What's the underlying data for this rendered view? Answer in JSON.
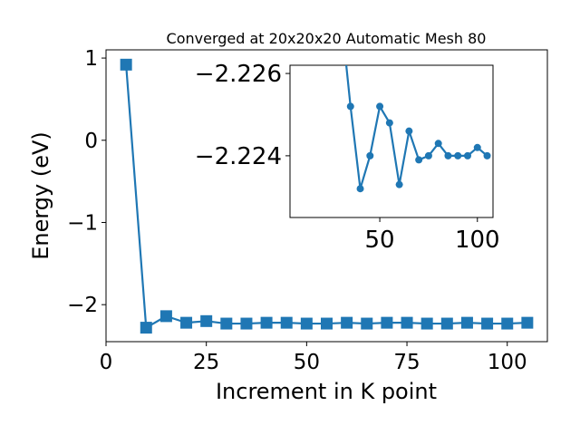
{
  "chart_data": [
    {
      "type": "line",
      "title": "Converged at 20x20x20 Automatic Mesh 80",
      "xlabel": "Increment in K point",
      "ylabel": "Energy (eV)",
      "xlim": [
        0,
        110
      ],
      "ylim": [
        -2.45,
        1.1
      ],
      "xticks": [
        0,
        25,
        50,
        75,
        100
      ],
      "yticks": [
        1,
        0,
        -1,
        -2
      ],
      "xtick_labels": [
        "0",
        "25",
        "50",
        "75",
        "100"
      ],
      "ytick_labels": [
        "1",
        "0",
        "−1",
        "−2"
      ],
      "marker": "square",
      "color": "#1f77b4",
      "series": [
        {
          "x": [
            5,
            10,
            15,
            20,
            25,
            30,
            35,
            40,
            45,
            50,
            55,
            60,
            65,
            70,
            75,
            80,
            85,
            90,
            95,
            100,
            105
          ],
          "y": [
            0.92,
            -2.28,
            -2.14,
            -2.22,
            -2.2,
            -2.23,
            -2.23,
            -2.22,
            -2.22,
            -2.23,
            -2.23,
            -2.22,
            -2.23,
            -2.22,
            -2.22,
            -2.23,
            -2.23,
            -2.22,
            -2.23,
            -2.23,
            -2.22
          ]
        }
      ]
    },
    {
      "type": "line",
      "title": "",
      "xlabel": "",
      "ylabel": "",
      "xlim": [
        4,
        108
      ],
      "ylim": [
        -2.2225,
        -2.2262
      ],
      "xticks": [
        50,
        100
      ],
      "yticks": [
        -2.226,
        -2.224
      ],
      "xtick_labels": [
        "50",
        "100"
      ],
      "ytick_labels": [
        "−2.226",
        "−2.224"
      ],
      "marker": "circle",
      "color": "#1f77b4",
      "series": [
        {
          "x": [
            30,
            35,
            40,
            45,
            50,
            55,
            60,
            65,
            70,
            75,
            80,
            85,
            90,
            95,
            100,
            105
          ],
          "y": [
            -2.2275,
            -2.2252,
            -2.2232,
            -2.224,
            -2.2252,
            -2.2248,
            -2.2233,
            -2.2246,
            -2.2239,
            -2.224,
            -2.2243,
            -2.224,
            -2.224,
            -2.224,
            -2.2242,
            -2.224
          ]
        }
      ]
    }
  ]
}
